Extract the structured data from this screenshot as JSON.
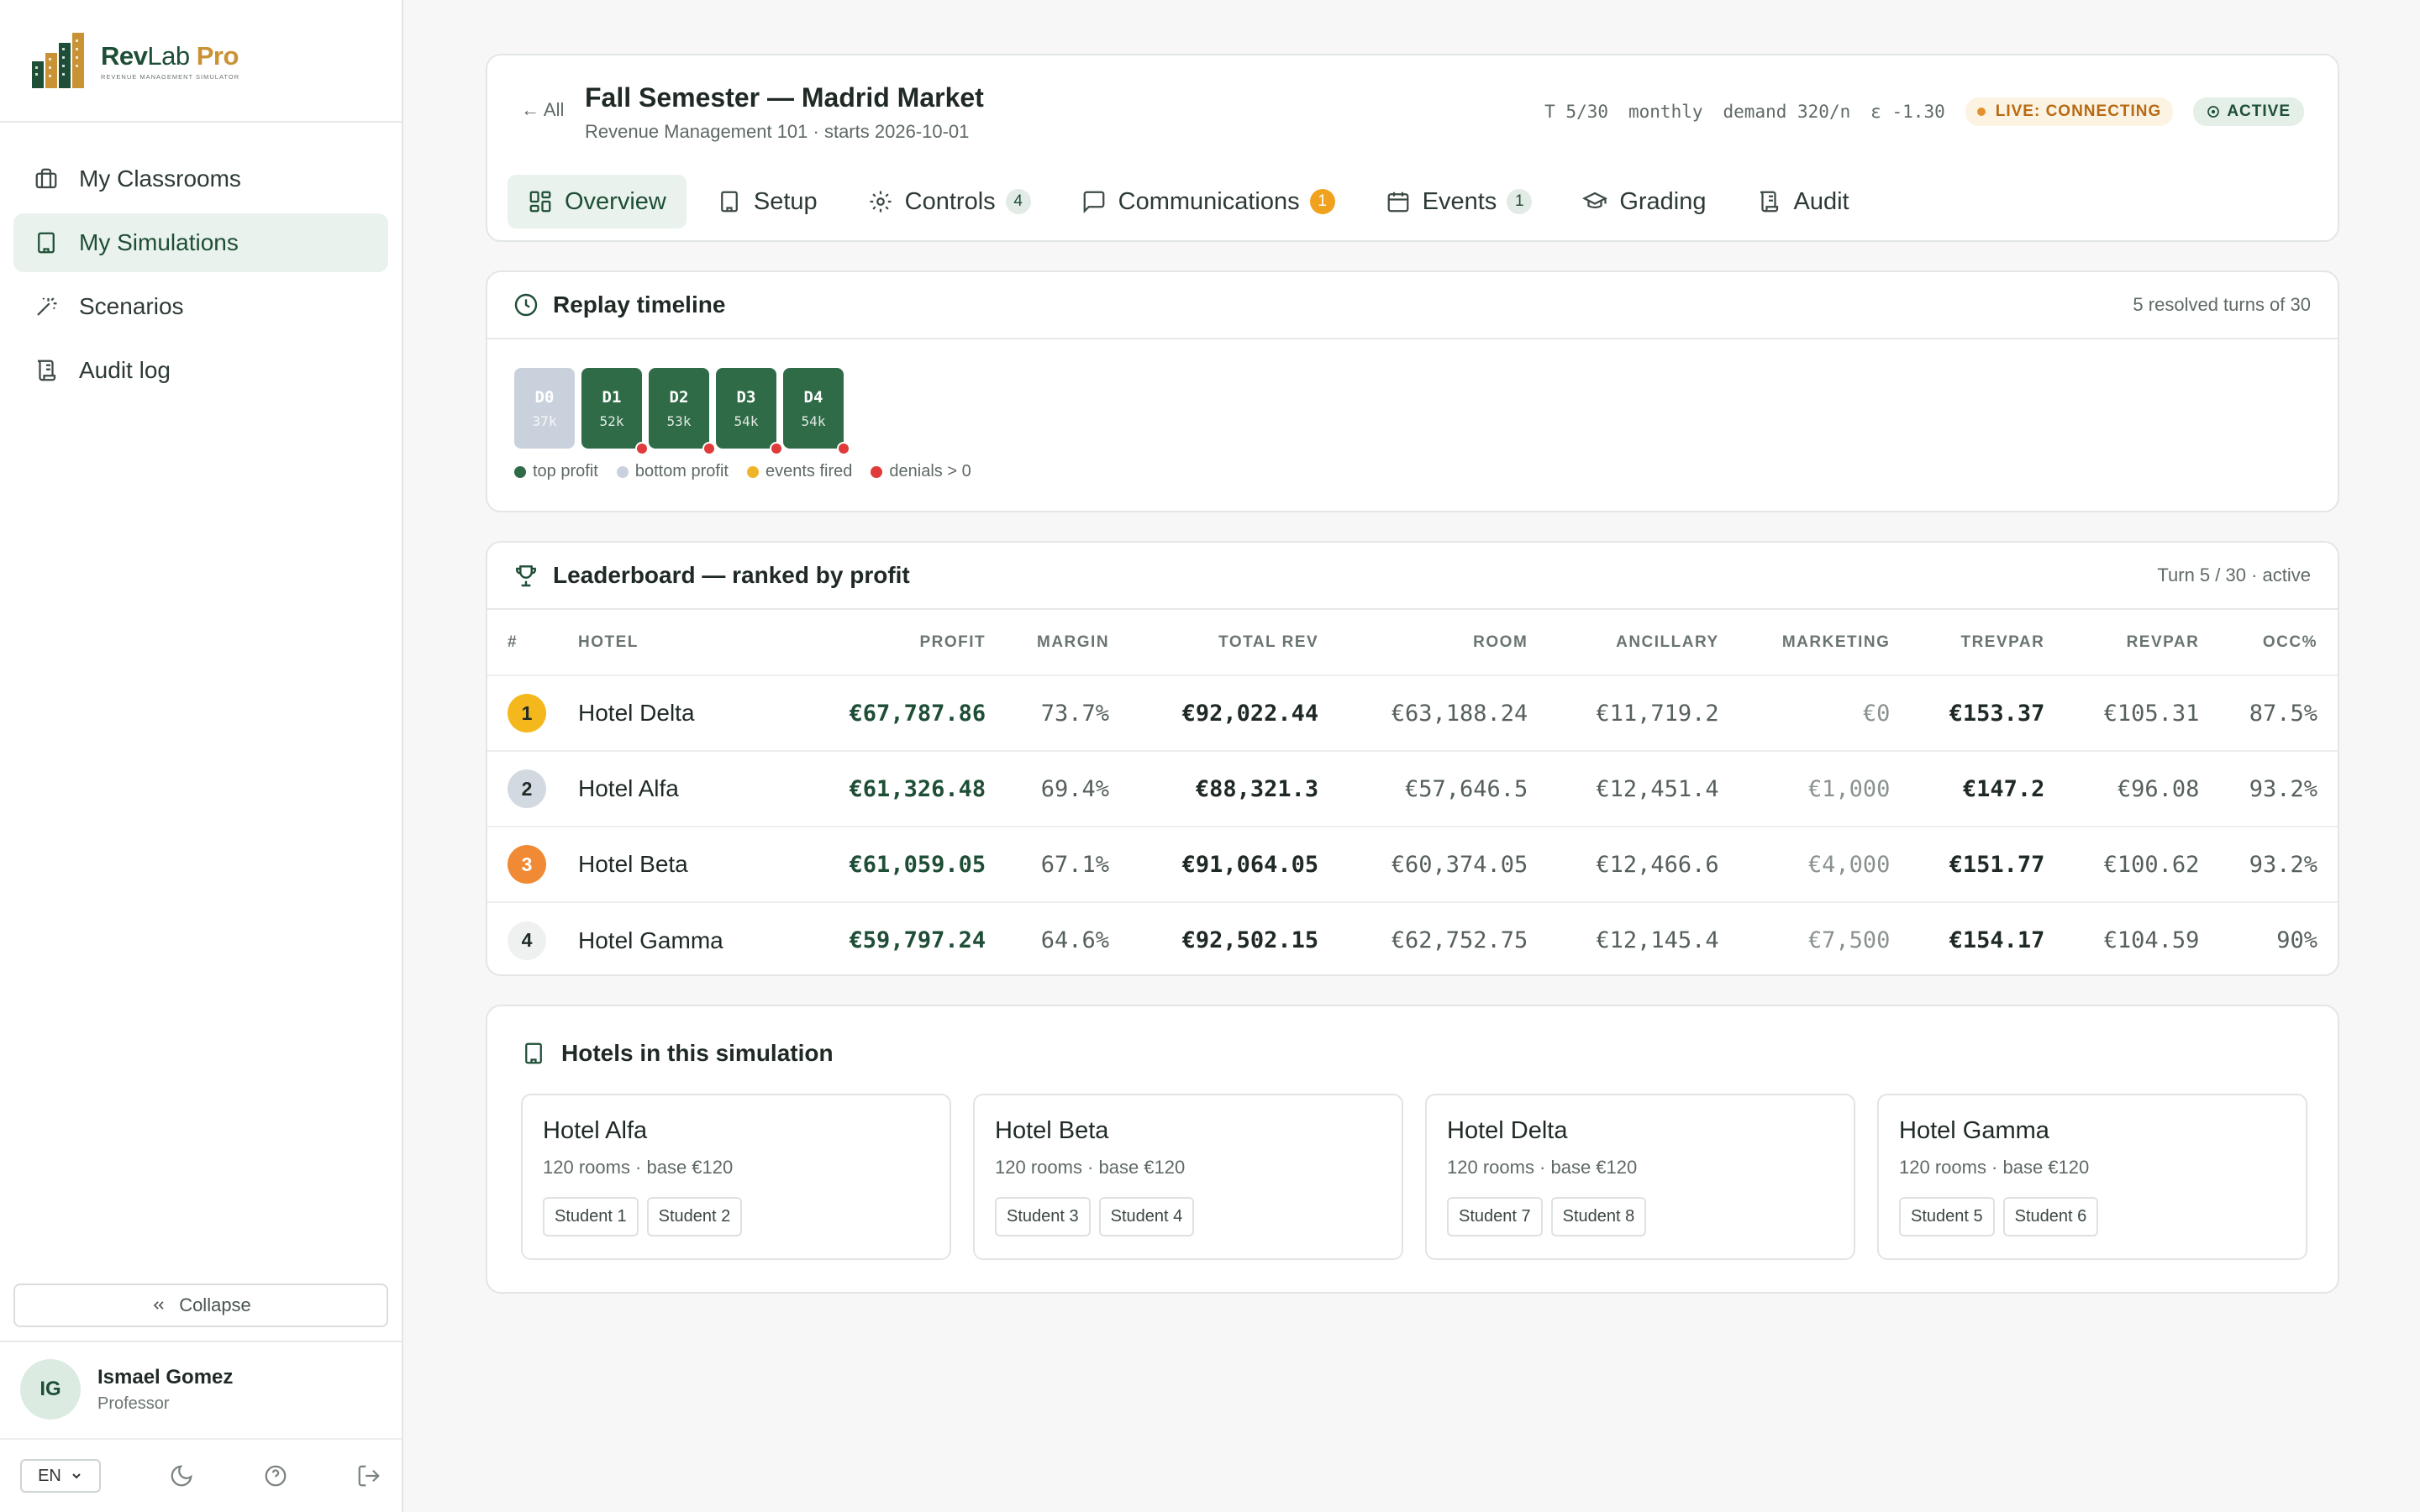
{
  "brand": {
    "name_a": "Rev",
    "name_b": "Lab",
    "name_c": "Pro",
    "tagline": "REVENUE MANAGEMENT SIMULATOR"
  },
  "nav": [
    {
      "label": "My Classrooms",
      "icon": "briefcase-icon"
    },
    {
      "label": "My Simulations",
      "icon": "building-icon"
    },
    {
      "label": "Scenarios",
      "icon": "wand-icon"
    },
    {
      "label": "Audit log",
      "icon": "scroll-icon"
    }
  ],
  "sidebar": {
    "collapse_label": "Collapse"
  },
  "user": {
    "initials": "IG",
    "name": "Ismael Gomez",
    "role": "Professor",
    "lang": "EN"
  },
  "header": {
    "back_label": "All",
    "title": "Fall Semester — Madrid Market",
    "subtitle": "Revenue Management 101 · starts 2026-10-01",
    "turn": "T 5/30",
    "frequency": "monthly",
    "demand": "demand 320/n",
    "epsilon": "ε -1.30",
    "live_status": "LIVE: CONNECTING",
    "status": "ACTIVE"
  },
  "tabs": [
    {
      "label": "Overview",
      "badge": ""
    },
    {
      "label": "Setup",
      "badge": ""
    },
    {
      "label": "Controls",
      "badge": "4"
    },
    {
      "label": "Communications",
      "badge": "1"
    },
    {
      "label": "Events",
      "badge": "1"
    },
    {
      "label": "Grading",
      "badge": ""
    },
    {
      "label": "Audit",
      "badge": ""
    }
  ],
  "replay": {
    "title": "Replay timeline",
    "summary": "5 resolved turns of 30",
    "turns": [
      {
        "label": "D0",
        "value": "37k",
        "kind": "bottom",
        "denials": false
      },
      {
        "label": "D1",
        "value": "52k",
        "kind": "top",
        "denials": true
      },
      {
        "label": "D2",
        "value": "53k",
        "kind": "top",
        "denials": true
      },
      {
        "label": "D3",
        "value": "54k",
        "kind": "top",
        "denials": true
      },
      {
        "label": "D4",
        "value": "54k",
        "kind": "top",
        "denials": true
      }
    ],
    "legend": [
      {
        "label": "top profit",
        "color": "#2f6b47"
      },
      {
        "label": "bottom profit",
        "color": "#c9d2dc"
      },
      {
        "label": "events fired",
        "color": "#f0b429"
      },
      {
        "label": "denials > 0",
        "color": "#e03a3a"
      }
    ]
  },
  "leaderboard": {
    "title": "Leaderboard — ranked by profit",
    "summary": "Turn 5 / 30 · active",
    "columns": [
      "#",
      "HOTEL",
      "PROFIT",
      "MARGIN",
      "TOTAL REV",
      "ROOM",
      "ANCILLARY",
      "MARKETING",
      "TREVPAR",
      "REVPAR",
      "OCC%"
    ],
    "rows": [
      {
        "rank": "1",
        "rank_color": "#f5b81c",
        "rank_text": "#1f2a24",
        "hotel": "Hotel Delta",
        "profit": "€67,787.86",
        "margin": "73.7%",
        "total_rev": "€92,022.44",
        "room": "€63,188.24",
        "ancillary": "€11,719.2",
        "marketing": "€0",
        "trevpar": "€153.37",
        "revpar": "€105.31",
        "occ": "87.5%"
      },
      {
        "rank": "2",
        "rank_color": "#d3d9e1",
        "rank_text": "#1f2a24",
        "hotel": "Hotel Alfa",
        "profit": "€61,326.48",
        "margin": "69.4%",
        "total_rev": "€88,321.3",
        "room": "€57,646.5",
        "ancillary": "€12,451.4",
        "marketing": "€1,000",
        "trevpar": "€147.2",
        "revpar": "€96.08",
        "occ": "93.2%"
      },
      {
        "rank": "3",
        "rank_color": "#f08a34",
        "rank_text": "#ffffff",
        "hotel": "Hotel Beta",
        "profit": "€61,059.05",
        "margin": "67.1%",
        "total_rev": "€91,064.05",
        "room": "€60,374.05",
        "ancillary": "€12,466.6",
        "marketing": "€4,000",
        "trevpar": "€151.77",
        "revpar": "€100.62",
        "occ": "93.2%"
      },
      {
        "rank": "4",
        "rank_color": "#eef1ef",
        "rank_text": "#1f2a24",
        "hotel": "Hotel Gamma",
        "profit": "€59,797.24",
        "margin": "64.6%",
        "total_rev": "€92,502.15",
        "room": "€62,752.75",
        "ancillary": "€12,145.4",
        "marketing": "€7,500",
        "trevpar": "€154.17",
        "revpar": "€104.59",
        "occ": "90%"
      }
    ]
  },
  "hotels": {
    "title": "Hotels in this simulation",
    "items": [
      {
        "name": "Hotel Alfa",
        "spec": "120 rooms · base €120",
        "students": [
          "Student 1",
          "Student 2"
        ]
      },
      {
        "name": "Hotel Beta",
        "spec": "120 rooms · base €120",
        "students": [
          "Student 3",
          "Student 4"
        ]
      },
      {
        "name": "Hotel Delta",
        "spec": "120 rooms · base €120",
        "students": [
          "Student 7",
          "Student 8"
        ]
      },
      {
        "name": "Hotel Gamma",
        "spec": "120 rooms · base €120",
        "students": [
          "Student 5",
          "Student 6"
        ]
      }
    ]
  }
}
